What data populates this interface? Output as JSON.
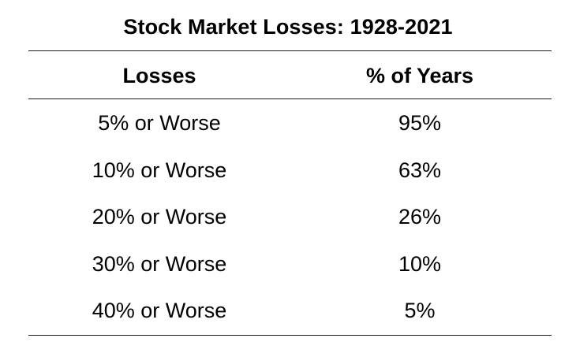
{
  "chart_data": {
    "type": "table",
    "title": "Stock Market Losses: 1928-2021",
    "columns": [
      "Losses",
      "% of Years"
    ],
    "rows": [
      [
        "5% or Worse",
        "95%"
      ],
      [
        "10% or Worse",
        "63%"
      ],
      [
        "20% or Worse",
        "26%"
      ],
      [
        "30% or Worse",
        "10%"
      ],
      [
        "40% or Worse",
        "5%"
      ]
    ]
  }
}
